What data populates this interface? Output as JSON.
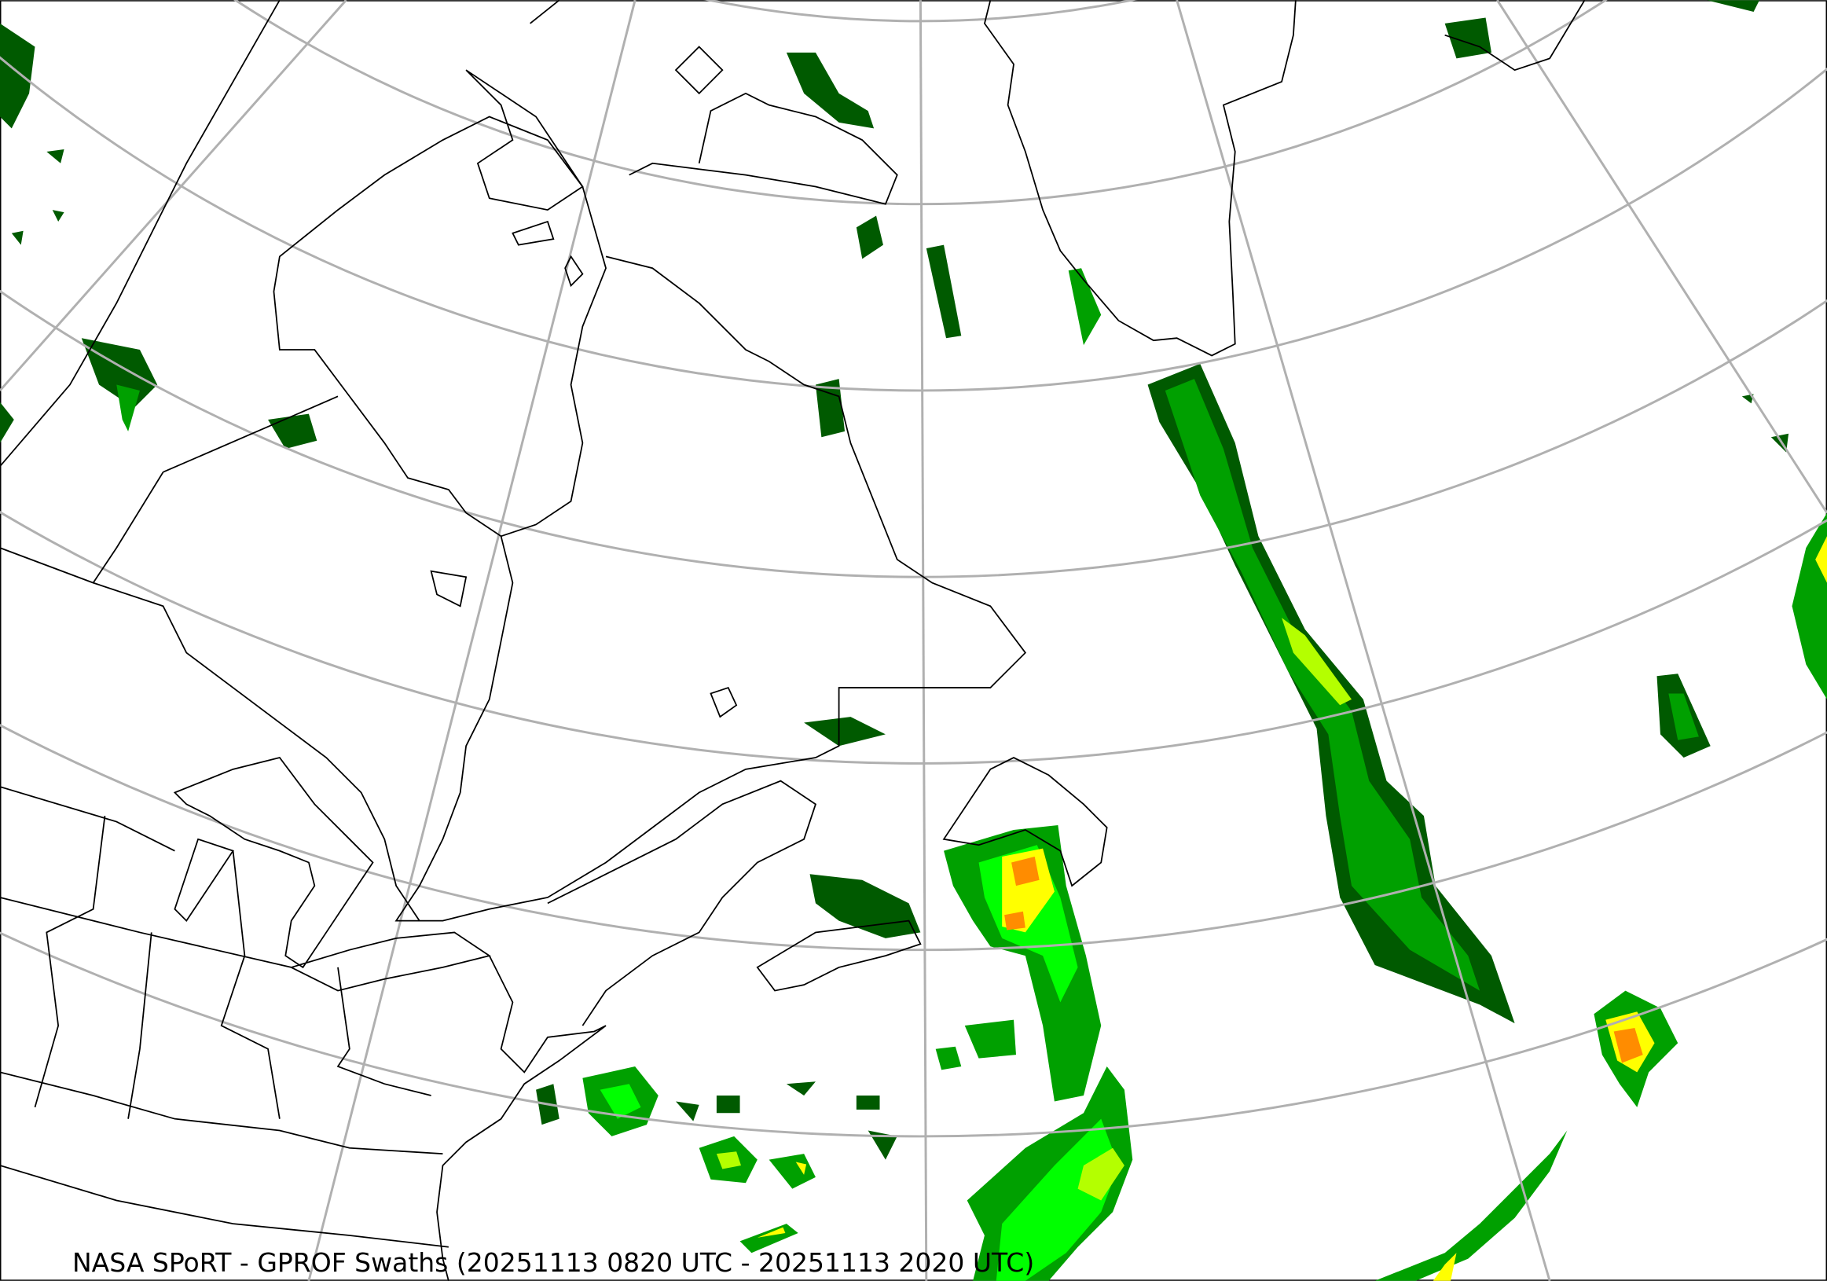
{
  "map": {
    "caption": "NASA SPoRT - GPROF Swaths (20251113 0820 UTC - 20251113 2020 UTC)",
    "colors": {
      "graticule": "#b0b0b0",
      "coastline": "#000000",
      "precip_dark_green": "#005a00",
      "precip_green": "#00a000",
      "precip_bright_green": "#00ff00",
      "precip_yellow_green": "#b4ff00",
      "precip_yellow": "#ffff00",
      "precip_orange": "#ff8c00"
    }
  }
}
